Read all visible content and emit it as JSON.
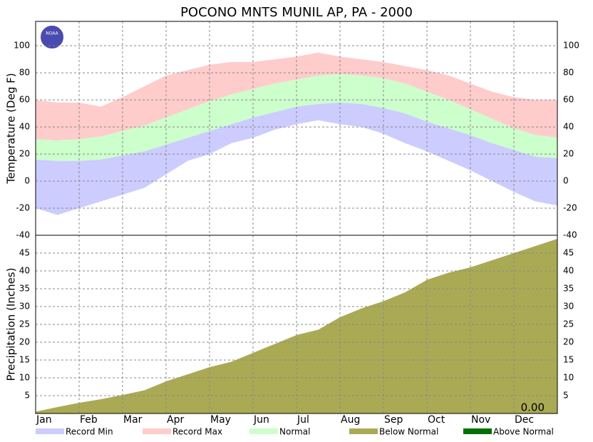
{
  "logo": "NOAA",
  "chart_data": [
    {
      "type": "band",
      "title": "POCONO MNTS MUNIL AP, PA - 2000",
      "ylabel": "Temperature (Deg F)",
      "ylim": [
        -40,
        118
      ],
      "yticks": [
        -40,
        -20,
        0,
        20,
        40,
        60,
        80,
        100
      ],
      "grid": true,
      "series": [
        {
          "name": "Record Min",
          "color": "#ccccff",
          "values": [
            -20,
            -25,
            -20,
            -15,
            -10,
            -5,
            5,
            15,
            20,
            28,
            32,
            38,
            42,
            45,
            42,
            40,
            35,
            28,
            22,
            15,
            8,
            0,
            -8,
            -15,
            -18
          ]
        },
        {
          "name": "Normal",
          "color": "#ccffcc",
          "low": [
            16,
            15,
            15,
            16,
            19,
            22,
            27,
            32,
            37,
            42,
            47,
            51,
            55,
            57,
            58,
            57,
            54,
            50,
            44,
            39,
            34,
            28,
            23,
            18,
            17
          ],
          "high": [
            31,
            30,
            31,
            33,
            37,
            41,
            47,
            53,
            59,
            64,
            68,
            72,
            75,
            78,
            79,
            78,
            76,
            72,
            66,
            60,
            53,
            46,
            39,
            34,
            32
          ]
        },
        {
          "name": "Record Max",
          "color": "#ffcccc",
          "values": [
            60,
            58,
            58,
            55,
            62,
            70,
            78,
            82,
            86,
            88,
            88,
            90,
            92,
            95,
            92,
            90,
            88,
            85,
            82,
            78,
            72,
            66,
            62,
            60,
            60
          ]
        }
      ]
    },
    {
      "type": "area",
      "ylabel": "Precipitation (Inches)",
      "categories": [
        "Jan",
        null,
        "Feb",
        null,
        "Mar",
        null,
        "Apr",
        null,
        "May",
        null,
        "Jun",
        null,
        "Jul",
        null,
        "Aug",
        null,
        "Sep",
        null,
        "Oct",
        null,
        "Nov",
        null,
        "Dec",
        null,
        null
      ],
      "ylim": [
        0,
        50
      ],
      "yticks": [
        5,
        10,
        15,
        20,
        25,
        30,
        35,
        40,
        45
      ],
      "grid": true,
      "annotation": "0.00",
      "series": [
        {
          "name": "Below Normal",
          "color": "#aaaa55",
          "values": [
            0.5,
            1.8,
            3,
            4,
            5.2,
            6.5,
            9,
            11,
            13,
            14.5,
            17,
            19.5,
            22,
            23.5,
            27,
            29.5,
            31.5,
            34,
            37.5,
            39.5,
            41,
            43,
            45,
            47,
            49
          ]
        }
      ],
      "extra_legend": {
        "name": "Above Normal",
        "color": "#007000"
      }
    }
  ]
}
